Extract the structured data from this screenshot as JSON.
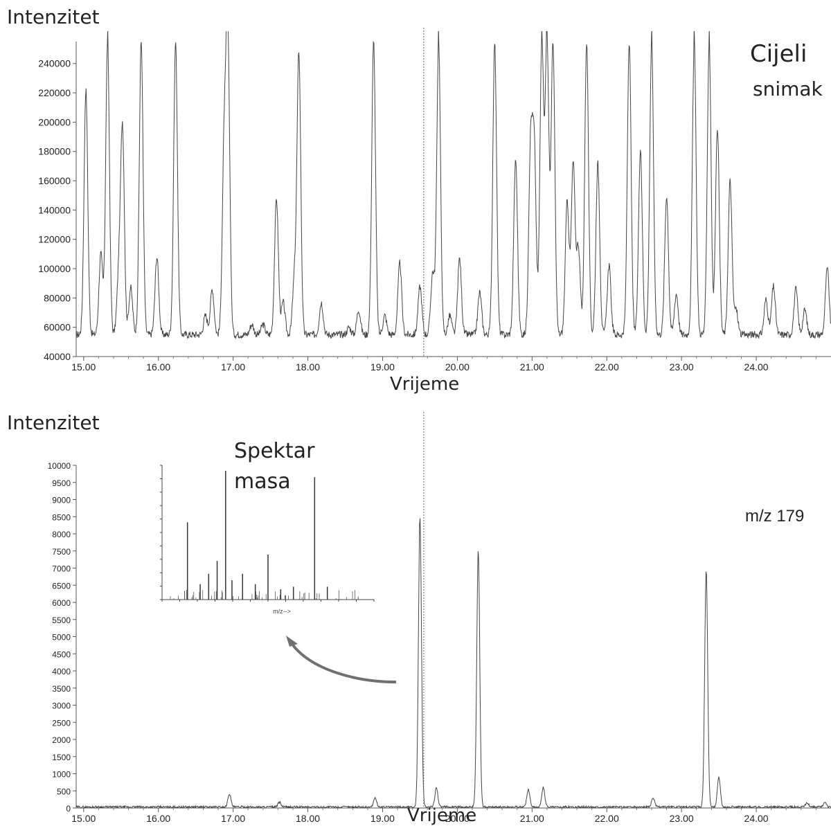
{
  "chart_data": [
    {
      "type": "line",
      "ylabel": "Intenzitet",
      "xlabel": "Vrijeme",
      "annotation": [
        "Cijeli",
        "snimak"
      ],
      "xlim": [
        14.9,
        25.0
      ],
      "ylim": [
        40000,
        255000
      ],
      "xticks": [
        "15.00",
        "16.00",
        "17.00",
        "18.00",
        "19.00",
        "20.00",
        "21.00",
        "22.00",
        "23.00",
        "24.00"
      ],
      "yticks": [
        "40000",
        "60000",
        "80000",
        "100000",
        "120000",
        "140000",
        "160000",
        "180000",
        "200000",
        "220000",
        "240000"
      ],
      "baseline": 55000,
      "peaks": [
        {
          "x": 15.03,
          "y": 222000
        },
        {
          "x": 15.23,
          "y": 110000
        },
        {
          "x": 15.32,
          "y": 255000
        },
        {
          "x": 15.47,
          "y": 95000
        },
        {
          "x": 15.52,
          "y": 195000
        },
        {
          "x": 15.63,
          "y": 87000
        },
        {
          "x": 15.77,
          "y": 255000
        },
        {
          "x": 15.98,
          "y": 108000
        },
        {
          "x": 16.23,
          "y": 255000
        },
        {
          "x": 16.63,
          "y": 68000
        },
        {
          "x": 16.72,
          "y": 86000
        },
        {
          "x": 16.88,
          "y": 180000
        },
        {
          "x": 16.93,
          "y": 255000
        },
        {
          "x": 17.25,
          "y": 62000
        },
        {
          "x": 17.4,
          "y": 62000
        },
        {
          "x": 17.58,
          "y": 148000
        },
        {
          "x": 17.67,
          "y": 77000
        },
        {
          "x": 17.82,
          "y": 92000
        },
        {
          "x": 17.88,
          "y": 247000
        },
        {
          "x": 18.18,
          "y": 77000
        },
        {
          "x": 18.55,
          "y": 60000
        },
        {
          "x": 18.68,
          "y": 72000
        },
        {
          "x": 18.88,
          "y": 255000
        },
        {
          "x": 19.03,
          "y": 68000
        },
        {
          "x": 19.23,
          "y": 104000
        },
        {
          "x": 19.5,
          "y": 88000
        },
        {
          "x": 19.67,
          "y": 97000
        },
        {
          "x": 19.75,
          "y": 255000
        },
        {
          "x": 19.9,
          "y": 68000
        },
        {
          "x": 20.03,
          "y": 107000
        },
        {
          "x": 20.3,
          "y": 84000
        },
        {
          "x": 20.5,
          "y": 255000
        },
        {
          "x": 20.78,
          "y": 175000
        },
        {
          "x": 20.98,
          "y": 180000
        },
        {
          "x": 21.03,
          "y": 177000
        },
        {
          "x": 21.13,
          "y": 255000
        },
        {
          "x": 21.2,
          "y": 255000
        },
        {
          "x": 21.28,
          "y": 255000
        },
        {
          "x": 21.47,
          "y": 146000
        },
        {
          "x": 21.55,
          "y": 172000
        },
        {
          "x": 21.62,
          "y": 115000
        },
        {
          "x": 21.73,
          "y": 255000
        },
        {
          "x": 21.88,
          "y": 172000
        },
        {
          "x": 22.03,
          "y": 102000
        },
        {
          "x": 22.3,
          "y": 255000
        },
        {
          "x": 22.45,
          "y": 182000
        },
        {
          "x": 22.6,
          "y": 255000
        },
        {
          "x": 22.8,
          "y": 150000
        },
        {
          "x": 22.93,
          "y": 83000
        },
        {
          "x": 23.17,
          "y": 255000
        },
        {
          "x": 23.37,
          "y": 255000
        },
        {
          "x": 23.48,
          "y": 197000
        },
        {
          "x": 23.65,
          "y": 160000
        },
        {
          "x": 23.73,
          "y": 72000
        },
        {
          "x": 24.13,
          "y": 79000
        },
        {
          "x": 24.23,
          "y": 88000
        },
        {
          "x": 24.53,
          "y": 86000
        },
        {
          "x": 24.65,
          "y": 72000
        },
        {
          "x": 24.95,
          "y": 100000
        }
      ],
      "cursor_x": 19.55
    },
    {
      "type": "line",
      "ylabel": "Intenzitet",
      "xlabel": "Vrijeme",
      "annotation": [
        "Spektar",
        "masa"
      ],
      "ion_label": "m/z 179",
      "xlim": [
        14.9,
        25.0
      ],
      "ylim": [
        0,
        10000
      ],
      "xticks": [
        "15.00",
        "16.00",
        "17.00",
        "18.00",
        "19.00",
        "20.00",
        "21.00",
        "22.00",
        "23.00",
        "24.00"
      ],
      "yticks": [
        "0",
        "500",
        "1000",
        "1500",
        "2000",
        "2500",
        "3000",
        "3500",
        "4000",
        "4500",
        "5000",
        "5500",
        "6000",
        "6500",
        "7000",
        "7500",
        "8000",
        "8500",
        "9000",
        "9500",
        "10000"
      ],
      "baseline": 30,
      "peaks": [
        {
          "x": 16.95,
          "y": 420
        },
        {
          "x": 17.62,
          "y": 170
        },
        {
          "x": 18.9,
          "y": 300
        },
        {
          "x": 19.5,
          "y": 8500
        },
        {
          "x": 19.72,
          "y": 600
        },
        {
          "x": 20.28,
          "y": 7500
        },
        {
          "x": 20.95,
          "y": 550
        },
        {
          "x": 21.15,
          "y": 600
        },
        {
          "x": 22.62,
          "y": 300
        },
        {
          "x": 23.33,
          "y": 6950
        },
        {
          "x": 23.5,
          "y": 900
        },
        {
          "x": 24.68,
          "y": 150
        },
        {
          "x": 24.92,
          "y": 180
        }
      ],
      "cursor_x": 19.55
    }
  ],
  "inset": {
    "axis_label": "m/z-->",
    "bars": [
      {
        "x": 0.12,
        "h": 0.6
      },
      {
        "x": 0.18,
        "h": 0.12
      },
      {
        "x": 0.22,
        "h": 0.2
      },
      {
        "x": 0.26,
        "h": 0.3
      },
      {
        "x": 0.3,
        "h": 1.0
      },
      {
        "x": 0.33,
        "h": 0.15
      },
      {
        "x": 0.38,
        "h": 0.2
      },
      {
        "x": 0.44,
        "h": 0.12
      },
      {
        "x": 0.5,
        "h": 0.35
      },
      {
        "x": 0.56,
        "h": 0.08
      },
      {
        "x": 0.62,
        "h": 0.1
      },
      {
        "x": 0.72,
        "h": 0.95
      },
      {
        "x": 0.78,
        "h": 0.1
      }
    ]
  }
}
